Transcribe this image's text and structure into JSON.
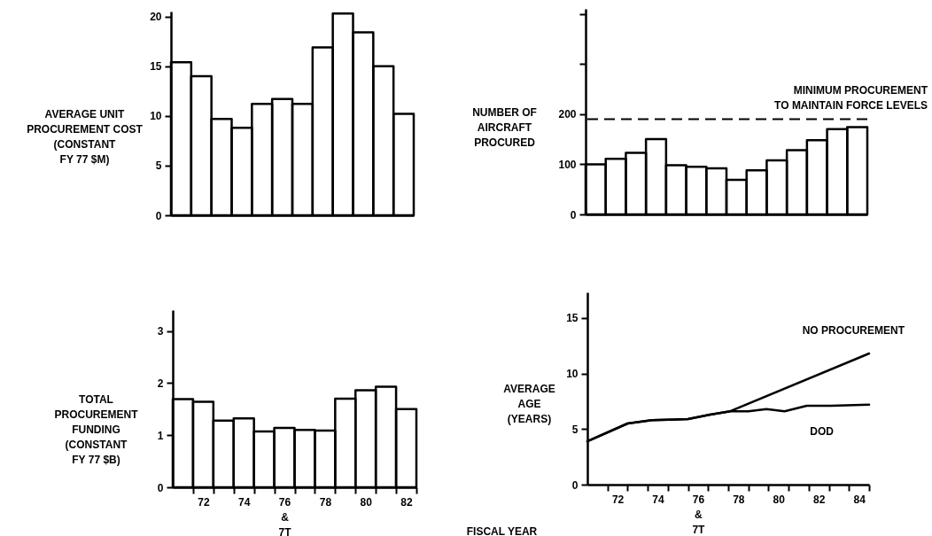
{
  "chart_data": [
    {
      "type": "histogram",
      "ylabel": "AVERAGE UNIT\nPROCUREMENT COST\n(CONSTANT\nFY 77 $M)",
      "bins": [
        70.5,
        71.5,
        72.5,
        73.5,
        74.5,
        75.5,
        76.5,
        77.5,
        78.5,
        79.5,
        80.5,
        81.5,
        82.5
      ],
      "values": [
        15.4,
        14.0,
        9.7,
        8.8,
        11.2,
        11.7,
        11.2,
        16.9,
        20.3,
        18.4,
        15.0,
        10.2
      ],
      "color": "#000000",
      "xlim": [
        70.5,
        82.5
      ],
      "ylim": [
        0,
        20.5
      ],
      "yticks": [
        0,
        5,
        10,
        15,
        20
      ],
      "tick_labels": "y"
    },
    {
      "type": "histogram",
      "ylabel": "NUMBER OF\nAIRCRAFT\nPROCURED",
      "bins": [
        70.5,
        71.5,
        72.5,
        73.5,
        74.5,
        75.5,
        76.5,
        77.5,
        78.5,
        79.5,
        80.5,
        81.5,
        82.5,
        83.5,
        84.5
      ],
      "values": [
        100,
        111,
        123,
        150,
        98,
        95,
        92,
        69,
        88,
        108,
        128,
        148,
        170,
        174
      ],
      "color": "#000000",
      "xlim": [
        70.5,
        84.5
      ],
      "ylim": [
        0,
        410
      ],
      "yticks": [
        0,
        100,
        200,
        {
          "value": 300,
          "label": null
        },
        {
          "value": 400,
          "label": null
        }
      ],
      "tick_labels": "y",
      "ref_lines": [
        {
          "axis": "y",
          "value": 190,
          "label": "MINIMUM PROCUREMENT\nTO MAINTAIN FORCE LEVELS",
          "line_style": "dashed"
        }
      ]
    },
    {
      "type": "histogram",
      "ylabel": "TOTAL\nPROCUREMENT\nFUNDING\n(CONSTANT\nFY 77 $B)",
      "bins": [
        70.5,
        71.5,
        72.5,
        73.5,
        74.5,
        75.5,
        76.5,
        77.5,
        78.5,
        79.5,
        80.5,
        81.5,
        82.5
      ],
      "values": [
        1.69,
        1.64,
        1.28,
        1.32,
        1.07,
        1.14,
        1.1,
        1.09,
        1.7,
        1.86,
        1.93,
        1.5
      ],
      "color": "#000000",
      "xlim": [
        70.5,
        82.5
      ],
      "ylim": [
        0,
        3.4
      ],
      "yticks": [
        0,
        1,
        2,
        3
      ],
      "xticks": [
        {
          "value": 71.5,
          "label": null
        },
        {
          "value": 72,
          "label": "72"
        },
        {
          "value": 72.5,
          "label": null
        },
        {
          "value": 73.5,
          "label": null
        },
        {
          "value": 74,
          "label": "74"
        },
        {
          "value": 74.5,
          "label": null
        },
        {
          "value": 75.5,
          "label": null
        },
        {
          "value": 76,
          "label": "76\n&\n7T"
        },
        {
          "value": 76.5,
          "label": null
        },
        {
          "value": 77.5,
          "label": null
        },
        {
          "value": 78,
          "label": "78"
        },
        {
          "value": 78.5,
          "label": null
        },
        {
          "value": 79.5,
          "label": null
        },
        {
          "value": 80,
          "label": "80"
        },
        {
          "value": 80.5,
          "label": null
        },
        {
          "value": 81.5,
          "label": null
        },
        {
          "value": 82,
          "label": "82"
        },
        {
          "value": 82.5,
          "label": null
        }
      ]
    },
    {
      "type": "line",
      "ylabel": "AVERAGE\nAGE\n(YEARS)",
      "xlabel": "FISCAL YEAR",
      "xlim": [
        70.5,
        84.5
      ],
      "ylim": [
        0,
        17.3
      ],
      "yticks": [
        0,
        5,
        10,
        15
      ],
      "xticks": [
        {
          "value": 71.5,
          "label": null
        },
        {
          "value": 72,
          "label": "72"
        },
        {
          "value": 72.5,
          "label": null
        },
        {
          "value": 73.5,
          "label": null
        },
        {
          "value": 74,
          "label": "74"
        },
        {
          "value": 74.5,
          "label": null
        },
        {
          "value": 75.5,
          "label": null
        },
        {
          "value": 76,
          "label": "76\n&\n7T"
        },
        {
          "value": 76.5,
          "label": null
        },
        {
          "value": 77.5,
          "label": null
        },
        {
          "value": 78,
          "label": "78"
        },
        {
          "value": 78.5,
          "label": null
        },
        {
          "value": 79.5,
          "label": null
        },
        {
          "value": 80,
          "label": "80"
        },
        {
          "value": 80.5,
          "label": null
        },
        {
          "value": 81.5,
          "label": null
        },
        {
          "value": 82,
          "label": "82"
        },
        {
          "value": 82.5,
          "label": null
        },
        {
          "value": 83.5,
          "label": null
        },
        {
          "value": 84,
          "label": "84"
        },
        {
          "value": 84.5,
          "label": null
        }
      ],
      "series": [
        {
          "name": "NO PROCUREMENT",
          "color": "#000000",
          "x": [
            70.5,
            72.5,
            73.7,
            75.5,
            76.6,
            77.6,
            84.5
          ],
          "values": [
            3.9,
            5.5,
            5.8,
            5.9,
            6.3,
            6.6,
            11.8
          ]
        },
        {
          "name": "DOD",
          "color": "#000000",
          "x": [
            70.5,
            72.5,
            73.7,
            75.5,
            76.6,
            77.6,
            78.5,
            79.4,
            80.3,
            81.4,
            82.6,
            84.5
          ],
          "values": [
            3.9,
            5.5,
            5.8,
            5.9,
            6.3,
            6.6,
            6.6,
            6.8,
            6.6,
            7.1,
            7.1,
            7.2
          ]
        }
      ]
    }
  ]
}
